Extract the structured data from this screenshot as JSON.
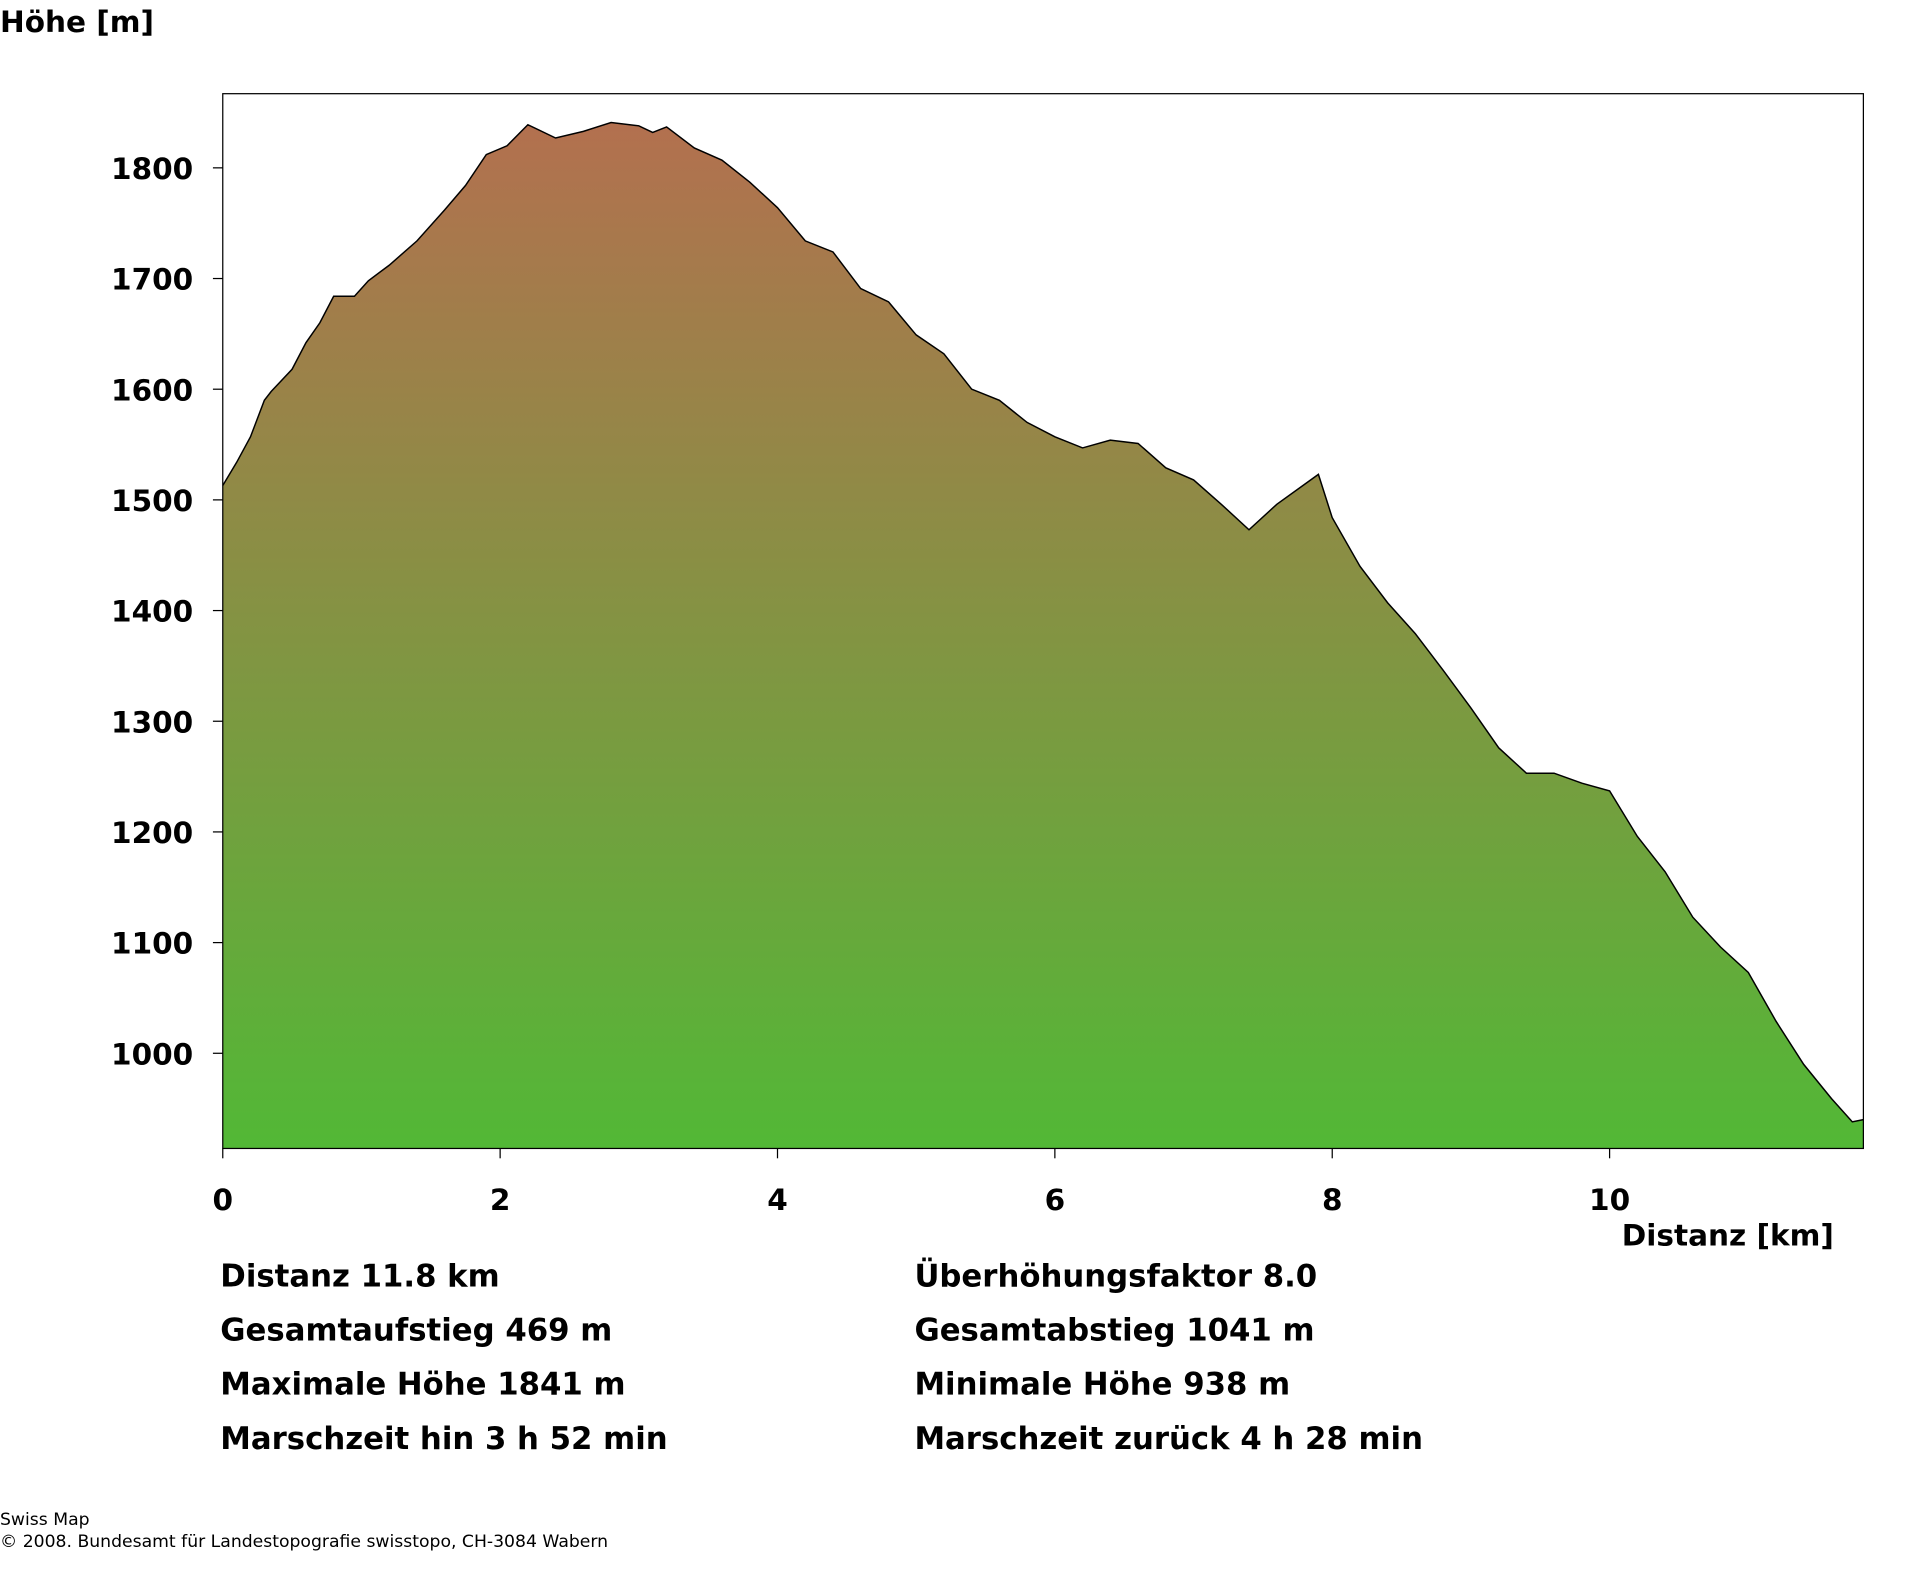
{
  "chart_data": {
    "type": "area",
    "y_label": "Höhe [m]",
    "x_label": "Distanz [km]",
    "x": [
      0,
      0.1,
      0.2,
      0.3,
      0.35,
      0.5,
      0.6,
      0.7,
      0.8,
      0.95,
      1.05,
      1.2,
      1.4,
      1.6,
      1.75,
      1.9,
      2.05,
      2.2,
      2.4,
      2.6,
      2.8,
      3.0,
      3.1,
      3.2,
      3.4,
      3.6,
      3.8,
      4.0,
      4.2,
      4.4,
      4.6,
      4.8,
      5.0,
      5.2,
      5.4,
      5.6,
      5.8,
      6.0,
      6.2,
      6.4,
      6.6,
      6.8,
      7.0,
      7.2,
      7.4,
      7.6,
      7.8,
      7.9,
      8.0,
      8.2,
      8.4,
      8.6,
      8.8,
      9.0,
      9.2,
      9.4,
      9.6,
      9.8,
      10.0,
      10.2,
      10.4,
      10.6,
      10.8,
      11.0,
      11.2,
      11.4,
      11.6,
      11.75,
      11.83
    ],
    "y": [
      1513,
      1534,
      1557,
      1590,
      1598,
      1618,
      1642,
      1660,
      1684,
      1684,
      1698,
      1712,
      1734,
      1762,
      1784,
      1812,
      1820,
      1839,
      1827,
      1833,
      1841,
      1838,
      1832,
      1837,
      1818,
      1807,
      1787,
      1764,
      1734,
      1724,
      1691,
      1679,
      1649,
      1632,
      1600,
      1590,
      1570,
      1557,
      1547,
      1554,
      1551,
      1529,
      1518,
      1496,
      1473,
      1496,
      1514,
      1523,
      1484,
      1440,
      1407,
      1379,
      1346,
      1312,
      1276,
      1253,
      1253,
      1244,
      1237,
      1196,
      1164,
      1123,
      1096,
      1073,
      1029,
      990,
      959,
      938,
      940
    ],
    "xlim": [
      0,
      11.83
    ],
    "ylim": [
      914,
      1867
    ],
    "xticks": [
      0,
      2,
      4,
      6,
      8,
      10
    ],
    "yticks": [
      1000,
      1100,
      1200,
      1300,
      1400,
      1500,
      1600,
      1700,
      1800
    ],
    "gradient": [
      "#b3704f",
      "#52b836"
    ],
    "line_color": "#000000"
  },
  "stats": [
    [
      "Distanz 11.8 km",
      "Überhöhungsfaktor 8.0"
    ],
    [
      "Gesamtaufstieg  469 m",
      "Gesamtabstieg  1041 m"
    ],
    [
      "Maximale Höhe  1841 m",
      "Minimale Höhe  938 m"
    ],
    [
      "Marschzeit hin  3 h 52 min",
      "Marschzeit zurück  4 h 28 min"
    ]
  ],
  "footer": [
    "Swiss Map",
    "© 2008. Bundesamt für Landestopografie swisstopo, CH-3084 Wabern"
  ]
}
